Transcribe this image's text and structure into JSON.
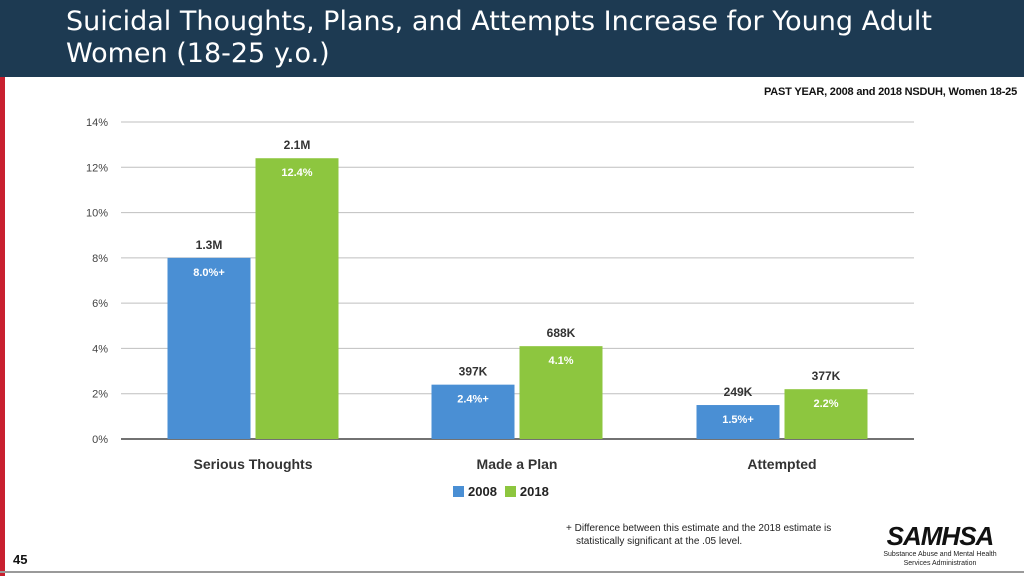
{
  "slide": {
    "title_line1": "Suicidal Thoughts, Plans, and Attempts Increase for Young Adult",
    "title_line2": "Women (18-25 y.o.)",
    "subtitle": "PAST YEAR, 2008 and 2018 NSDUH, Women 18-25",
    "page_number": "45",
    "footnote_line1": "+ Difference between this estimate and the 2018 estimate is",
    "footnote_line2": "statistically significant at the .05 level.",
    "logo_word": "SAMHSA",
    "logo_tag_line1": "Substance Abuse and Mental Health",
    "logo_tag_line2": "Services Administration"
  },
  "colors": {
    "header_bg": "#1d3a52",
    "accent_red": "#c8202f",
    "series_2008": "#4a8fd4",
    "series_2018": "#8dc63f",
    "grid": "#bfbfbf"
  },
  "chart_data": {
    "type": "bar",
    "title": "Suicidal Thoughts, Plans, and Attempts Increase for Young Adult Women (18-25 y.o.)",
    "xlabel": "",
    "ylabel": "",
    "ylim": [
      0,
      14
    ],
    "yticks": [
      0,
      2,
      4,
      6,
      8,
      10,
      12,
      14
    ],
    "ytick_labels": [
      "0%",
      "2%",
      "4%",
      "6%",
      "8%",
      "10%",
      "12%",
      "14%"
    ],
    "categories": [
      "Serious Thoughts",
      "Made a Plan",
      "Attempted"
    ],
    "legend_position": "bottom-center",
    "grid": true,
    "series": [
      {
        "name": "2008",
        "values": [
          8.0,
          2.4,
          1.5
        ],
        "value_labels": [
          "8.0%+",
          "2.4%+",
          "1.5%+"
        ],
        "count_labels": [
          "1.3M",
          "397K",
          "249K"
        ]
      },
      {
        "name": "2018",
        "values": [
          12.4,
          4.1,
          2.2
        ],
        "value_labels": [
          "12.4%",
          "4.1%",
          "2.2%"
        ],
        "count_labels": [
          "2.1M",
          "688K",
          "377K"
        ]
      }
    ]
  }
}
